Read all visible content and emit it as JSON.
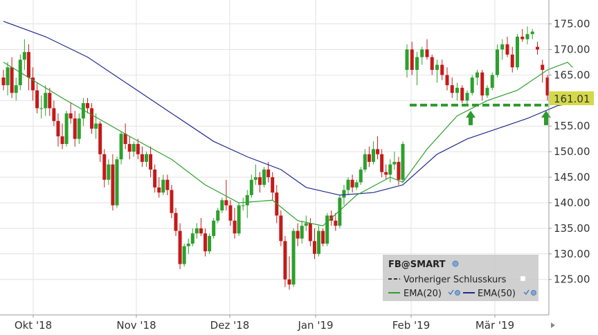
{
  "chart_data": {
    "type": "candlestick",
    "symbol": "FB@SMART",
    "y_axis": {
      "position": "right",
      "ylim": [
        119,
        179
      ],
      "ticks": [
        125,
        130,
        135,
        140,
        145,
        150,
        155,
        160,
        165,
        170,
        175
      ]
    },
    "x_axis": {
      "labels": [
        "Okt '18",
        "Nov '18",
        "Dez '18",
        "Jan '19",
        "Feb '19",
        "Mär '19"
      ]
    },
    "last_price": {
      "value": "161.01",
      "color": "#d4d94a"
    },
    "previous_close": {
      "value": 159.1,
      "color": "#2e9a2e",
      "label": "Vorheriger Schlusskurs"
    },
    "legend": {
      "title": "FB@SMART",
      "items": [
        {
          "name": "Vorheriger Schlusskurs",
          "color": "#2e9a2e"
        },
        {
          "name": "EMA(20)",
          "color": "#2ca02c"
        },
        {
          "name": "EMA(50)",
          "color": "#1f2a8a"
        }
      ]
    },
    "colors": {
      "up": "#2ca02c",
      "down": "#c41a1a",
      "ema20": "#2ca02c",
      "ema50": "#1f2a8a",
      "arrow": "#2e9a2e"
    },
    "candles": [
      [
        164.5,
        166.0,
        162.0,
        163.0
      ],
      [
        163.0,
        167.5,
        161.0,
        166.5
      ],
      [
        166.5,
        168.5,
        160.5,
        161.5
      ],
      [
        161.5,
        164.5,
        160.0,
        163.0
      ],
      [
        163.0,
        169.0,
        162.0,
        168.0
      ],
      [
        168.0,
        172.0,
        166.0,
        169.5
      ],
      [
        169.5,
        171.0,
        162.0,
        164.5
      ],
      [
        164.5,
        166.5,
        160.0,
        162.0
      ],
      [
        162.0,
        163.5,
        157.5,
        158.5
      ],
      [
        158.5,
        161.0,
        156.5,
        158.5
      ],
      [
        158.5,
        163.0,
        157.0,
        161.5
      ],
      [
        161.5,
        162.5,
        157.0,
        158.5
      ],
      [
        158.5,
        160.0,
        155.0,
        156.0
      ],
      [
        156.0,
        157.5,
        151.0,
        153.0
      ],
      [
        153.0,
        155.5,
        150.5,
        151.5
      ],
      [
        151.5,
        158.0,
        151.0,
        157.5
      ],
      [
        157.5,
        159.5,
        155.5,
        156.5
      ],
      [
        156.5,
        158.0,
        151.0,
        152.5
      ],
      [
        152.5,
        157.5,
        151.5,
        156.5
      ],
      [
        156.5,
        160.5,
        155.0,
        159.5
      ],
      [
        159.5,
        160.5,
        157.5,
        158.5
      ],
      [
        158.5,
        159.5,
        153.5,
        154.5
      ],
      [
        154.5,
        157.5,
        152.5,
        155.5
      ],
      [
        155.5,
        156.0,
        148.0,
        149.5
      ],
      [
        149.5,
        150.5,
        143.0,
        144.5
      ],
      [
        144.5,
        148.5,
        143.5,
        147.5
      ],
      [
        147.5,
        149.5,
        138.5,
        139.5
      ],
      [
        139.5,
        149.0,
        139.0,
        148.5
      ],
      [
        148.5,
        154.0,
        147.5,
        153.5
      ],
      [
        153.5,
        155.5,
        150.5,
        151.5
      ],
      [
        151.5,
        153.0,
        148.5,
        150.0
      ],
      [
        150.0,
        152.0,
        149.0,
        151.5
      ],
      [
        151.5,
        152.5,
        148.5,
        149.5
      ],
      [
        149.5,
        151.0,
        147.0,
        148.0
      ],
      [
        148.0,
        150.0,
        147.0,
        149.5
      ],
      [
        149.5,
        151.0,
        145.0,
        146.5
      ],
      [
        146.5,
        147.5,
        142.0,
        143.0
      ],
      [
        143.0,
        145.0,
        141.0,
        142.0
      ],
      [
        142.0,
        145.5,
        141.5,
        144.5
      ],
      [
        144.5,
        145.5,
        141.5,
        142.5
      ],
      [
        142.5,
        143.5,
        137.0,
        138.0
      ],
      [
        138.0,
        139.0,
        133.5,
        134.5
      ],
      [
        134.5,
        136.0,
        127.0,
        128.0
      ],
      [
        128.0,
        132.0,
        127.5,
        131.5
      ],
      [
        131.5,
        133.0,
        130.0,
        132.0
      ],
      [
        132.0,
        135.0,
        131.5,
        134.0
      ],
      [
        134.0,
        136.0,
        133.0,
        135.0
      ],
      [
        135.0,
        137.0,
        133.5,
        134.0
      ],
      [
        134.0,
        135.0,
        129.5,
        130.5
      ],
      [
        130.5,
        134.0,
        130.0,
        133.5
      ],
      [
        133.5,
        137.0,
        133.0,
        136.5
      ],
      [
        136.5,
        139.0,
        136.0,
        138.5
      ],
      [
        138.5,
        141.0,
        138.0,
        140.5
      ],
      [
        140.5,
        144.5,
        138.5,
        139.5
      ],
      [
        139.5,
        140.5,
        135.5,
        136.5
      ],
      [
        136.5,
        139.0,
        133.0,
        134.0
      ],
      [
        134.0,
        140.0,
        133.5,
        139.5
      ],
      [
        139.5,
        141.0,
        138.5,
        139.5
      ],
      [
        139.5,
        142.5,
        137.0,
        141.5
      ],
      [
        141.5,
        145.5,
        141.0,
        144.5
      ],
      [
        144.5,
        147.5,
        143.5,
        145.0
      ],
      [
        145.0,
        146.0,
        142.0,
        143.5
      ],
      [
        143.5,
        147.0,
        143.0,
        146.5
      ],
      [
        146.5,
        148.0,
        144.0,
        145.0
      ],
      [
        145.0,
        146.0,
        140.5,
        142.0
      ],
      [
        142.0,
        143.5,
        136.0,
        137.5
      ],
      [
        137.5,
        138.5,
        131.5,
        132.5
      ],
      [
        132.5,
        133.5,
        123.5,
        125.0
      ],
      [
        125.0,
        129.5,
        123.0,
        124.0
      ],
      [
        124.0,
        135.0,
        123.5,
        134.5
      ],
      [
        134.5,
        136.0,
        131.5,
        133.0
      ],
      [
        133.0,
        136.5,
        132.0,
        135.5
      ],
      [
        135.5,
        137.5,
        134.5,
        136.0
      ],
      [
        136.0,
        137.0,
        131.5,
        132.5
      ],
      [
        132.5,
        135.0,
        129.0,
        130.0
      ],
      [
        130.0,
        135.5,
        129.5,
        134.5
      ],
      [
        134.5,
        135.0,
        131.5,
        132.0
      ],
      [
        132.0,
        138.0,
        131.5,
        137.5
      ],
      [
        137.5,
        138.5,
        135.5,
        136.5
      ],
      [
        136.5,
        138.0,
        134.5,
        135.5
      ],
      [
        135.5,
        141.5,
        135.0,
        141.0
      ],
      [
        141.0,
        143.5,
        139.5,
        142.5
      ],
      [
        142.5,
        145.0,
        141.5,
        144.5
      ],
      [
        144.5,
        145.5,
        142.0,
        143.0
      ],
      [
        143.0,
        144.5,
        142.5,
        144.0
      ],
      [
        144.0,
        147.0,
        143.5,
        146.5
      ],
      [
        146.5,
        150.5,
        146.0,
        149.5
      ],
      [
        149.5,
        151.0,
        147.0,
        148.0
      ],
      [
        148.0,
        152.0,
        147.5,
        150.5
      ],
      [
        150.5,
        153.0,
        148.5,
        149.5
      ],
      [
        149.5,
        150.5,
        145.0,
        146.0
      ],
      [
        146.0,
        147.5,
        144.5,
        145.5
      ],
      [
        145.5,
        148.5,
        144.0,
        147.5
      ],
      [
        147.5,
        150.0,
        146.5,
        148.0
      ],
      [
        148.0,
        149.0,
        143.5,
        144.5
      ],
      [
        144.5,
        152.0,
        144.0,
        151.5
      ],
      [
        166.0,
        171.0,
        164.5,
        170.0
      ],
      [
        170.0,
        171.5,
        165.0,
        166.0
      ],
      [
        166.0,
        169.5,
        163.0,
        168.5
      ],
      [
        168.5,
        170.5,
        167.0,
        170.0
      ],
      [
        170.0,
        172.0,
        168.0,
        168.5
      ],
      [
        168.5,
        169.0,
        165.0,
        166.0
      ],
      [
        166.0,
        168.0,
        163.5,
        167.0
      ],
      [
        167.0,
        168.0,
        164.0,
        165.0
      ],
      [
        165.0,
        166.5,
        162.0,
        163.0
      ],
      [
        163.0,
        164.5,
        160.5,
        161.5
      ],
      [
        161.5,
        163.5,
        160.0,
        162.5
      ],
      [
        162.5,
        163.0,
        159.5,
        160.0
      ],
      [
        160.0,
        162.0,
        159.0,
        161.5
      ],
      [
        161.5,
        165.0,
        161.0,
        164.5
      ],
      [
        164.5,
        166.0,
        163.0,
        165.5
      ],
      [
        165.5,
        166.0,
        160.0,
        161.0
      ],
      [
        161.0,
        163.0,
        160.5,
        162.5
      ],
      [
        162.5,
        165.5,
        162.0,
        165.0
      ],
      [
        165.0,
        171.0,
        164.5,
        170.0
      ],
      [
        170.0,
        172.0,
        168.0,
        171.0
      ],
      [
        171.0,
        172.5,
        168.5,
        169.0
      ],
      [
        169.0,
        170.5,
        165.5,
        166.5
      ],
      [
        166.5,
        173.0,
        166.0,
        172.5
      ],
      [
        172.5,
        174.0,
        171.5,
        172.0
      ],
      [
        172.0,
        174.5,
        171.0,
        173.0
      ],
      [
        173.0,
        174.0,
        172.0,
        173.5
      ],
      [
        170.5,
        171.5,
        169.0,
        170.0
      ],
      [
        167.0,
        168.0,
        163.5,
        166.0
      ],
      [
        164.5,
        165.0,
        160.0,
        161.0
      ]
    ],
    "ema20": [
      [
        0,
        167.5
      ],
      [
        14,
        160.5
      ],
      [
        30,
        153.0
      ],
      [
        40,
        148.5
      ],
      [
        48,
        143.5
      ],
      [
        56,
        140.0
      ],
      [
        64,
        140.5
      ],
      [
        70,
        136.5
      ],
      [
        76,
        135.5
      ],
      [
        84,
        141.5
      ],
      [
        92,
        145.0
      ],
      [
        95,
        144.0
      ],
      [
        100,
        150.5
      ],
      [
        106,
        157.0
      ],
      [
        112,
        160.0
      ],
      [
        118,
        162.0
      ],
      [
        124,
        166.0
      ],
      [
        128,
        167.5
      ],
      [
        129,
        166.5
      ]
    ],
    "ema50": [
      [
        0,
        175.5
      ],
      [
        10,
        172.5
      ],
      [
        20,
        168.5
      ],
      [
        30,
        163.0
      ],
      [
        40,
        157.5
      ],
      [
        50,
        152.0
      ],
      [
        58,
        149.0
      ],
      [
        66,
        146.5
      ],
      [
        72,
        143.0
      ],
      [
        80,
        141.5
      ],
      [
        88,
        142.0
      ],
      [
        95,
        143.5
      ],
      [
        102,
        149.5
      ],
      [
        108,
        152.5
      ],
      [
        114,
        154.5
      ],
      [
        120,
        156.5
      ],
      [
        126,
        159.0
      ],
      [
        129,
        159.5
      ]
    ]
  }
}
